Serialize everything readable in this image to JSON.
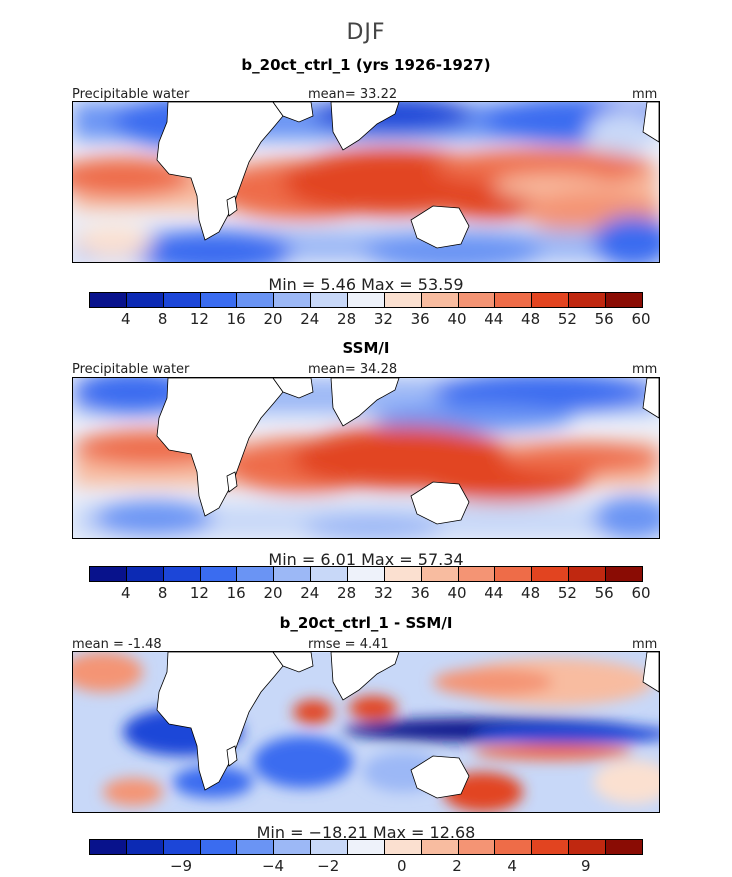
{
  "figure": {
    "title": "DJF"
  },
  "panels": [
    {
      "title": "b_20ct_ctrl_1 (yrs 1926-1927)",
      "left_label": "Precipitable water",
      "center_label": "mean=  33.22",
      "right_label": "mm",
      "minmax": "Min =    5.46  Max =   53.59",
      "colorbar_ticks": [
        "4",
        "8",
        "12",
        "16",
        "20",
        "24",
        "28",
        "32",
        "36",
        "40",
        "44",
        "48",
        "52",
        "56",
        "60"
      ]
    },
    {
      "title": "SSM/I",
      "left_label": "Precipitable water",
      "center_label": "mean=  34.28",
      "right_label": "mm",
      "minmax": "Min =    6.01  Max =   57.34",
      "colorbar_ticks": [
        "4",
        "8",
        "12",
        "16",
        "20",
        "24",
        "28",
        "32",
        "36",
        "40",
        "44",
        "48",
        "52",
        "56",
        "60"
      ]
    },
    {
      "title": "b_20ct_ctrl_1 - SSM/I",
      "left_label": "mean =  -1.48",
      "center_label": "rmse =   4.41",
      "right_label": "mm",
      "minmax": "Min = −18.21  Max =   12.68",
      "colorbar_ticks": [
        "−9",
        "−4",
        "−2",
        "0",
        "2",
        "4",
        "9"
      ]
    }
  ],
  "colorbar_colors": [
    "#08128c",
    "#0c2ab4",
    "#1c46d8",
    "#3a6cf0",
    "#6a94f4",
    "#9cb8f6",
    "#c8d8f8",
    "#eef2fa",
    "#fbe0d0",
    "#f8bca0",
    "#f49474",
    "#ee6c48",
    "#e24420",
    "#c02810",
    "#8a0c04"
  ],
  "colors": {
    "ocean_neutral": "#e8eef8",
    "land": "#ffffff",
    "coast": "#000000"
  }
}
